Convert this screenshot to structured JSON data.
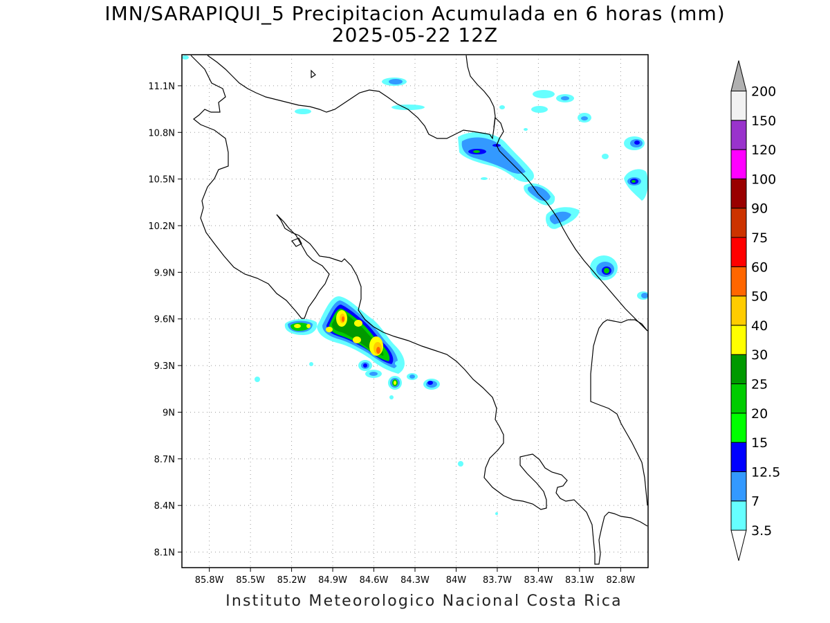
{
  "title": "IMN/SARAPIQUI_5 Precipitacion Acumulada en 6 horas (mm)",
  "subtitle": "2025-05-22 12Z",
  "footer": "Instituto Meteorologico Nacional Costa Rica",
  "map": {
    "lon_range": [
      -86.0,
      -82.6
    ],
    "lat_range": [
      8.0,
      11.3
    ],
    "lon_ticks": [
      "85.8W",
      "85.5W",
      "85.2W",
      "84.9W",
      "84.6W",
      "84.3W",
      "84W",
      "83.7W",
      "83.4W",
      "83.1W",
      "82.8W"
    ],
    "lat_ticks": [
      "11.1N",
      "10.8N",
      "10.5N",
      "10.2N",
      "9.9N",
      "9.6N",
      "9.3N",
      "9N",
      "8.7N",
      "8.4N",
      "8.1N"
    ],
    "gridlines": true,
    "projection": "latitude-longitude"
  },
  "colorbar": {
    "placement": "right",
    "levels": [
      "3.5",
      "7",
      "12.5",
      "15",
      "20",
      "25",
      "30",
      "40",
      "50",
      "60",
      "75",
      "90",
      "100",
      "120",
      "150",
      "200"
    ],
    "colors": [
      "#66ffff",
      "#3399ff",
      "#0000ff",
      "#00ff00",
      "#00cc00",
      "#009900",
      "#ffff00",
      "#ffcc00",
      "#ff6600",
      "#ff0000",
      "#cc3300",
      "#990000",
      "#ff00ff",
      "#9933cc",
      "#f2f2f2",
      "#b0b0b0"
    ]
  },
  "precipitation_areas": [
    {
      "name": "Golfo de Nicoya cells",
      "lon": -84.7,
      "lat": 9.5,
      "max_mm": "40-50"
    },
    {
      "name": "Caribbean coast band",
      "lon": -83.6,
      "lat": 10.6,
      "max_mm": "12.5-15"
    },
    {
      "name": "Offshore Caribbean cells",
      "lon": -82.8,
      "lat": 10.4,
      "max_mm": "15-20"
    }
  ]
}
